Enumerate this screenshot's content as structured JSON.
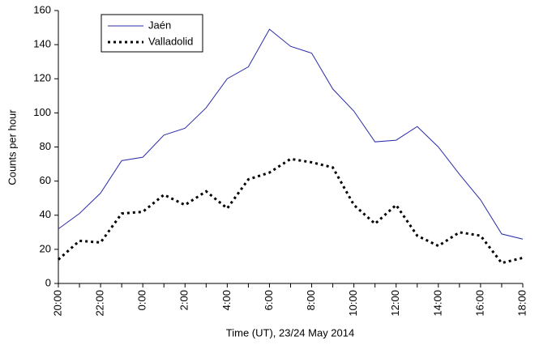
{
  "chart_data": {
    "type": "line",
    "x_label": "Time (UT), 23/24 May 2014",
    "y_label": "Counts per hour",
    "categories": [
      "20:00",
      null,
      "22:00",
      null,
      "0:00",
      null,
      "2:00",
      null,
      "4:00",
      null,
      "6:00",
      null,
      "8:00",
      null,
      "10:00",
      null,
      "12:00",
      null,
      "14:00",
      null,
      "16:00",
      null,
      "18:00"
    ],
    "series": [
      {
        "name": "Jaén",
        "color": "#2b2ba8",
        "dash": "solid",
        "values": [
          32,
          41,
          53,
          72,
          74,
          87,
          91,
          103,
          120,
          127,
          149,
          139,
          135,
          114,
          101,
          83,
          84,
          92,
          80,
          64,
          49,
          29,
          26
        ]
      },
      {
        "name": "Valladolid",
        "color": "#000000",
        "dash": "dotted",
        "values": [
          14,
          25,
          24,
          41,
          42,
          52,
          46,
          54,
          44,
          61,
          65,
          73,
          71,
          68,
          46,
          35,
          46,
          28,
          22,
          30,
          28,
          12,
          15
        ]
      }
    ],
    "ylim": [
      0,
      160
    ],
    "yticks": [
      0,
      20,
      40,
      60,
      80,
      100,
      120,
      140,
      160
    ],
    "grid": false,
    "legend": "top-left"
  }
}
